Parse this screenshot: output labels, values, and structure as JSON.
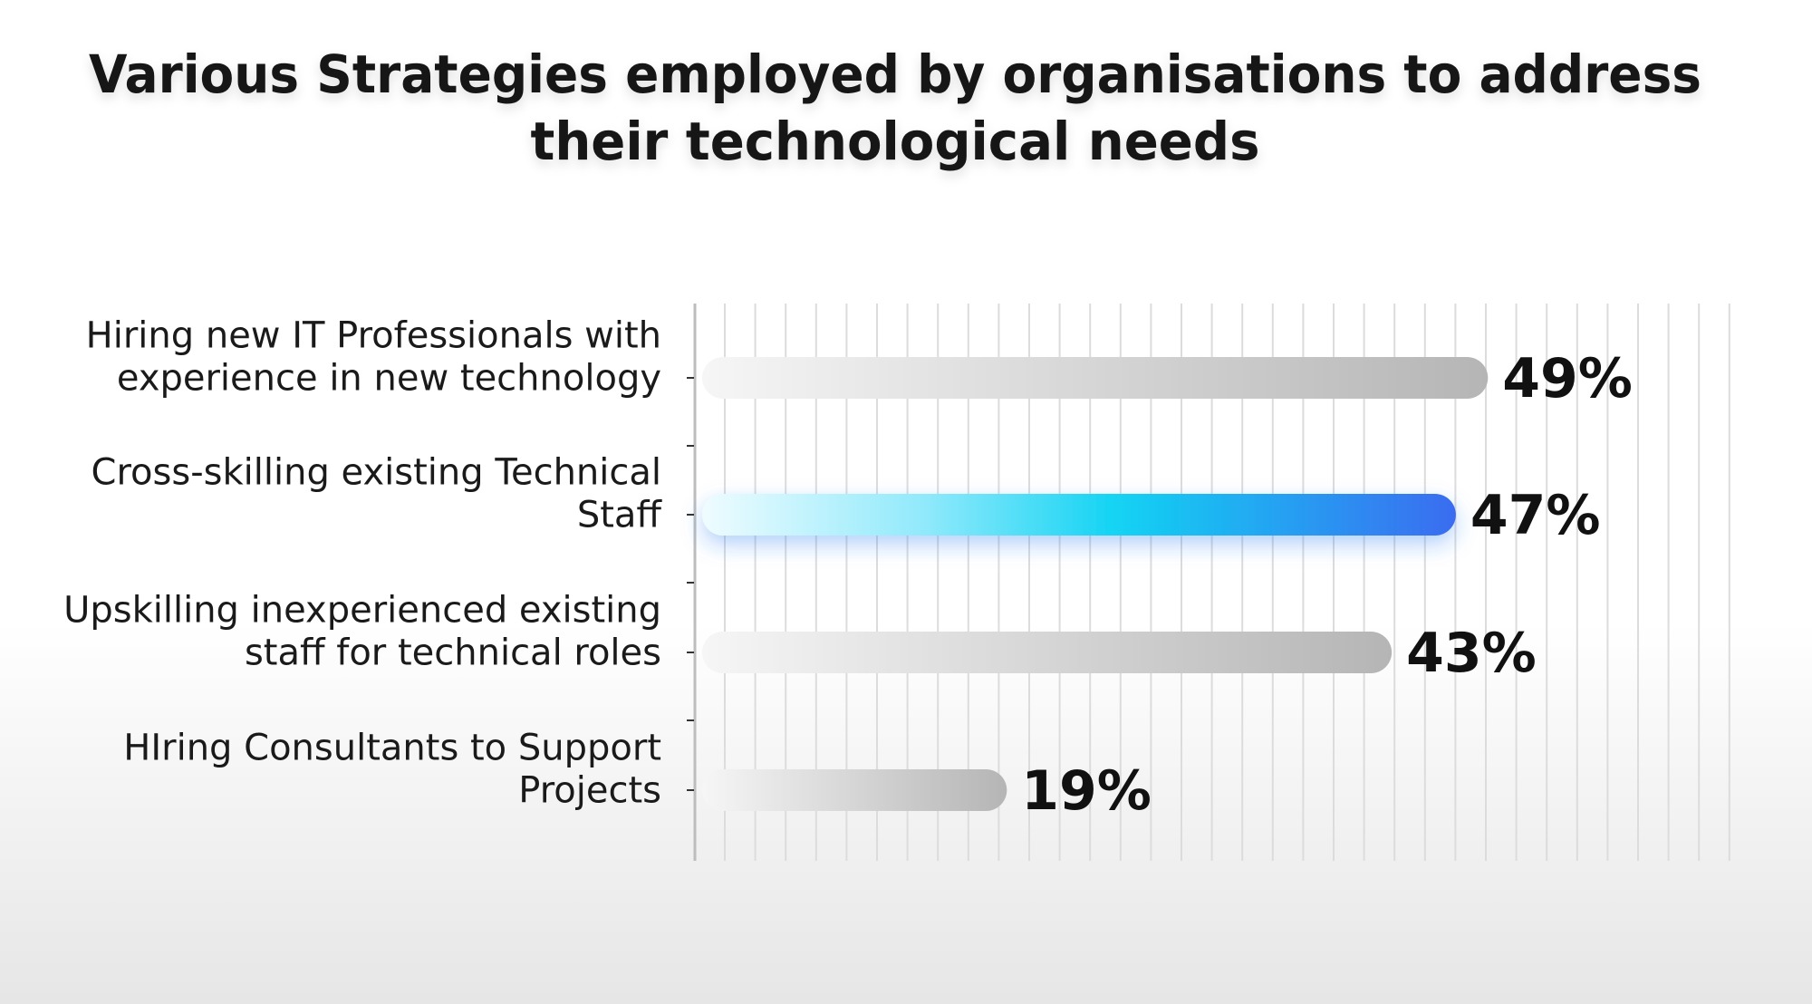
{
  "chart_data": {
    "type": "bar",
    "orientation": "horizontal",
    "title": "Various Strategies employed by organisations to address their technological needs",
    "title_lines": [
      "Various Strategies employed by organisations to address",
      "their technological needs"
    ],
    "categories": [
      "Hiring new IT Professionals with experience in new technology",
      "Cross-skilling existing Technical Staff",
      "Upskilling inexperienced existing staff for technical roles",
      "HIring Consultants to Support Projects"
    ],
    "category_lines": [
      [
        "Hiring new IT Professionals with",
        "experience in new technology"
      ],
      [
        "Cross-skilling existing Technical",
        "Staff"
      ],
      [
        "Upskilling inexperienced existing",
        "staff for technical roles"
      ],
      [
        "HIring Consultants to Support",
        "Projects"
      ]
    ],
    "values": [
      49,
      47,
      43,
      19
    ],
    "value_labels": [
      "49%",
      "47%",
      "43%",
      "19%"
    ],
    "unit": "%",
    "highlighted_index": 1,
    "xlim": [
      0,
      58
    ],
    "grid": true,
    "legend": "none",
    "colors": {
      "bar_default_start": "#f4f4f4",
      "bar_default_end": "#b8b8b8",
      "bar_highlight_start": "#e9fbff",
      "bar_highlight_mid": "#12d3f3",
      "bar_highlight_end": "#3b6ff0",
      "grid": "#dcdcdc",
      "axis": "#bdbdbd",
      "text": "#141414"
    }
  }
}
